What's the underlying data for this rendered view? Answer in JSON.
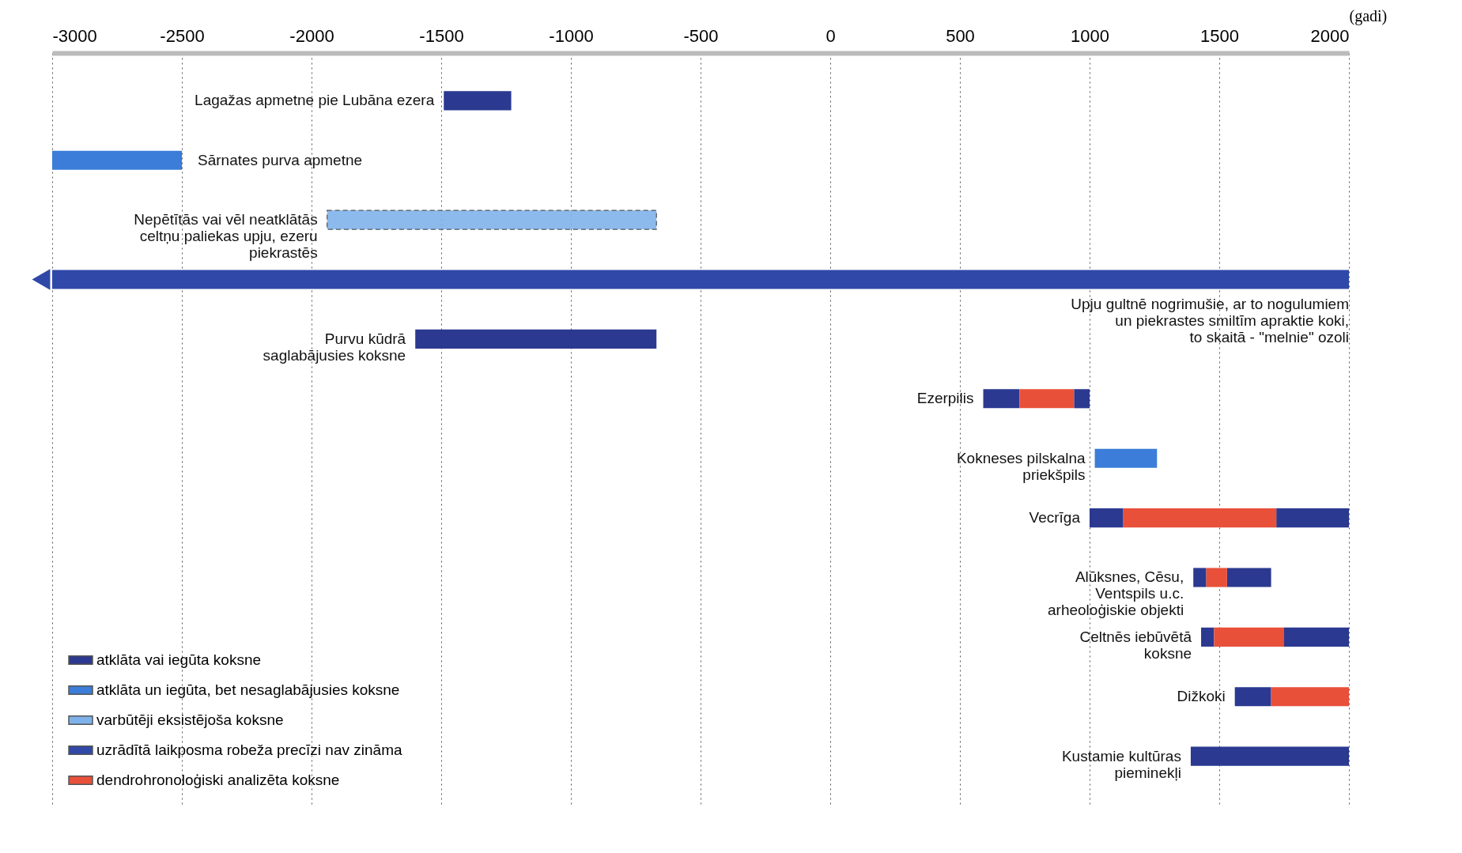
{
  "chart_data": {
    "type": "bar",
    "orientation": "horizontal",
    "xlabel": "(gadi)",
    "categories": [
      "Lagažas apmetne pie Lubāna ezera",
      "Sārnates purva apmetne",
      "Nepētītās vai vēl neatklātās\nceltņu paliekas upju, ezeru\npiekrastēs",
      "Upju gultnē nogrimušie, ar to nogulumiem\nun piekrastes smiltīm apraktie koki,\nto skaitā - \"melnie\" ozoli",
      "Purvu kūdrā\nsaglabājusies koksne",
      "Ezerpilis",
      "Kokneses pilskalna\npriekšpils",
      "Vecrīga",
      "Alūksnes, Cēsu,\nVentspils u.c.\narheoloģiskie objekti",
      "Celtnēs iebūvētā\nkoksne",
      "Dižkoki",
      "Kustamie kultūras\npieminekļi"
    ],
    "series": [
      {
        "name": "atklāta vai iegūta koksne",
        "color": "#2b3990",
        "base": [
          -1490,
          null,
          null,
          null,
          -1600,
          590,
          null,
          1000,
          1400,
          1430,
          1560,
          1390
        ],
        "values": [
          260,
          null,
          null,
          null,
          930,
          140,
          null,
          130,
          50,
          50,
          140,
          610
        ]
      },
      {
        "color": "#2b3990",
        "base": [
          null,
          null,
          null,
          null,
          null,
          940,
          null,
          1720,
          1530,
          1750,
          null,
          null
        ],
        "values": [
          null,
          null,
          null,
          null,
          null,
          60,
          null,
          280,
          170,
          250,
          null,
          null
        ]
      },
      {
        "name": "atklāta un iegūta, bet nesaglabājusies koksne",
        "color": "#3b7dd8",
        "base": [
          null,
          -3000,
          null,
          null,
          null,
          null,
          1020,
          null,
          null,
          null,
          null,
          null
        ],
        "values": [
          null,
          500,
          null,
          null,
          null,
          null,
          240,
          null,
          null,
          null,
          null,
          null
        ]
      },
      {
        "name": "varbūtēji eksistējoša koksne",
        "color": "#7fb2ea",
        "line_style": "dashed",
        "base": [
          null,
          null,
          -1940,
          null,
          null,
          null,
          null,
          null,
          null,
          null,
          null,
          null
        ],
        "values": [
          null,
          null,
          1270,
          null,
          null,
          null,
          null,
          null,
          null,
          null,
          null,
          null
        ]
      },
      {
        "name": "uzrādītā laikposma robeža precīzi nav zināma",
        "color": "#3048a8",
        "marker": "triangle",
        "base": [
          null,
          null,
          null,
          -3000,
          null,
          null,
          null,
          null,
          null,
          null,
          null,
          null
        ],
        "values": [
          null,
          null,
          null,
          5000,
          null,
          null,
          null,
          null,
          null,
          null,
          null,
          null
        ]
      },
      {
        "name": "dendrohronoloģiski analizēta koksne",
        "color": "#e8503a",
        "base": [
          null,
          null,
          null,
          null,
          null,
          730,
          null,
          1130,
          1450,
          1480,
          1700,
          null
        ],
        "values": [
          null,
          null,
          null,
          null,
          null,
          210,
          null,
          590,
          80,
          270,
          300,
          null
        ]
      }
    ],
    "xlim": [
      -3000,
      2000
    ],
    "xticks": [
      -3000,
      -2500,
      -2000,
      -1500,
      -1000,
      -500,
      0,
      500,
      1000,
      1500,
      2000
    ],
    "grid": "x",
    "legend": "bottom left",
    "tick_labels": "x"
  }
}
